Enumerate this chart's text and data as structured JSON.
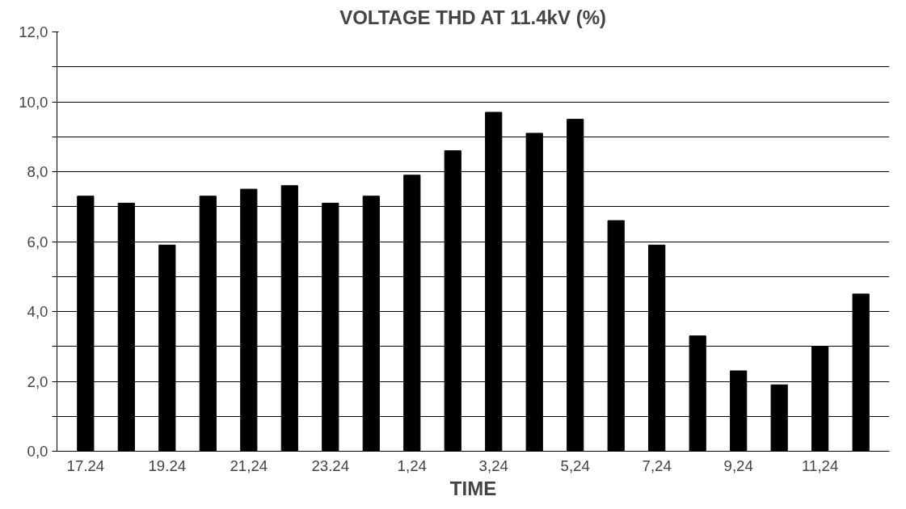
{
  "chart_data": {
    "type": "bar",
    "title": "VOLTAGE THD AT 11.4kV (%)",
    "xlabel": "TIME",
    "categories": [
      "17.24",
      null,
      "19.24",
      null,
      "21,24",
      null,
      "23.24",
      null,
      "1,24",
      null,
      "3,24",
      null,
      "5,24",
      null,
      "7,24",
      null,
      "9,24",
      null,
      "11,24",
      null
    ],
    "values": [
      7.3,
      7.1,
      5.9,
      7.3,
      7.5,
      7.6,
      7.1,
      7.3,
      7.9,
      8.6,
      9.7,
      9.1,
      9.5,
      6.6,
      5.9,
      3.3,
      2.3,
      1.9,
      3.0,
      4.5
    ],
    "color": "#000000",
    "ylim": [
      0,
      12
    ],
    "yticks": [
      {
        "value": 0,
        "label": "0,0"
      },
      {
        "value": 1,
        "label": null
      },
      {
        "value": 2,
        "label": "2,0"
      },
      {
        "value": 3,
        "label": null
      },
      {
        "value": 4,
        "label": "4,0"
      },
      {
        "value": 5,
        "label": null
      },
      {
        "value": 6,
        "label": "6,0"
      },
      {
        "value": 7,
        "label": null
      },
      {
        "value": 8,
        "label": "8,0"
      },
      {
        "value": 9,
        "label": null
      },
      {
        "value": 10,
        "label": "10,0"
      },
      {
        "value": 11,
        "label": null
      },
      {
        "value": 12,
        "label": "12,0"
      }
    ],
    "grid": "y"
  }
}
